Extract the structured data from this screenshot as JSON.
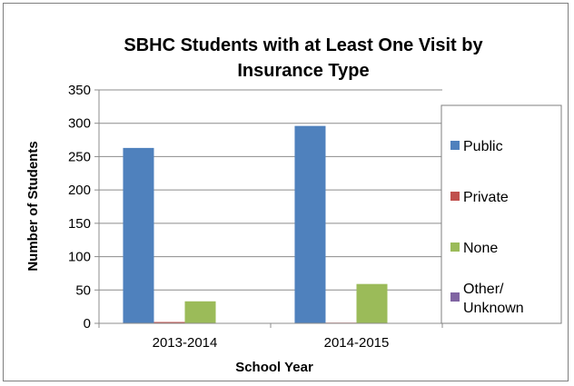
{
  "chart_data": {
    "type": "bar",
    "title_lines": [
      "SBHC Students with at Least One Visit by",
      "Insurance Type"
    ],
    "xlabel": "School Year",
    "ylabel": "Number of Students",
    "categories": [
      "2013-2014",
      "2014-2015"
    ],
    "ylim": [
      0,
      350
    ],
    "yticks": [
      0,
      50,
      100,
      150,
      200,
      250,
      300,
      350
    ],
    "grid": true,
    "legend_position": "right",
    "series": [
      {
        "name": "Public",
        "legend_lines": [
          "Public"
        ],
        "color": "#4F81BD",
        "values": [
          263,
          296
        ]
      },
      {
        "name": "Private",
        "legend_lines": [
          "Private"
        ],
        "color": "#C0504D",
        "values": [
          2,
          1
        ]
      },
      {
        "name": "None",
        "legend_lines": [
          "None"
        ],
        "color": "#9BBB59",
        "values": [
          33,
          59
        ]
      },
      {
        "name": "Other/ Unknown",
        "legend_lines": [
          "Other/",
          "Unknown"
        ],
        "color": "#8064A2",
        "values": [
          0,
          0
        ]
      }
    ]
  }
}
